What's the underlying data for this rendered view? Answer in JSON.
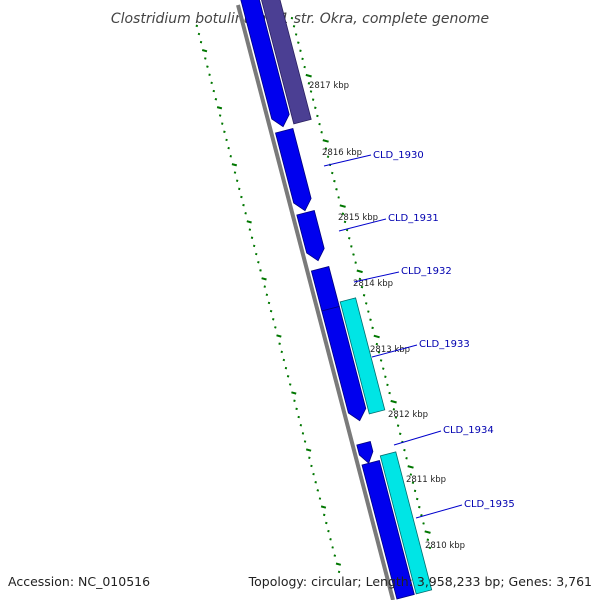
{
  "title": "Clostridium botulinum B1 str. Okra, complete genome",
  "footer": {
    "accession": "Accession: NC_010516",
    "summary": "Topology: circular; Length: 3,958,233 bp; Genes: 3,761"
  },
  "colors": {
    "backbone": "#7a7a7a",
    "gene_forward": "#0000ee",
    "gene_forward_edge": "#000080",
    "gene_reverse": "#00e5e5",
    "gene_reverse_edge": "#006e6e",
    "gene_upper": "#4b3f93",
    "tick": "#007700",
    "label_line": "#0000cc"
  },
  "scale_labels": [
    "2817 kbp",
    "2816 kbp",
    "2815 kbp",
    "2814 kbp",
    "2813 kbp",
    "2812 kbp",
    "2811 kbp",
    "2810 kbp"
  ],
  "gene_labels": [
    "CLD_1930",
    "CLD_1931",
    "CLD_1932",
    "CLD_1933",
    "CLD_1934",
    "CLD_1935"
  ]
}
